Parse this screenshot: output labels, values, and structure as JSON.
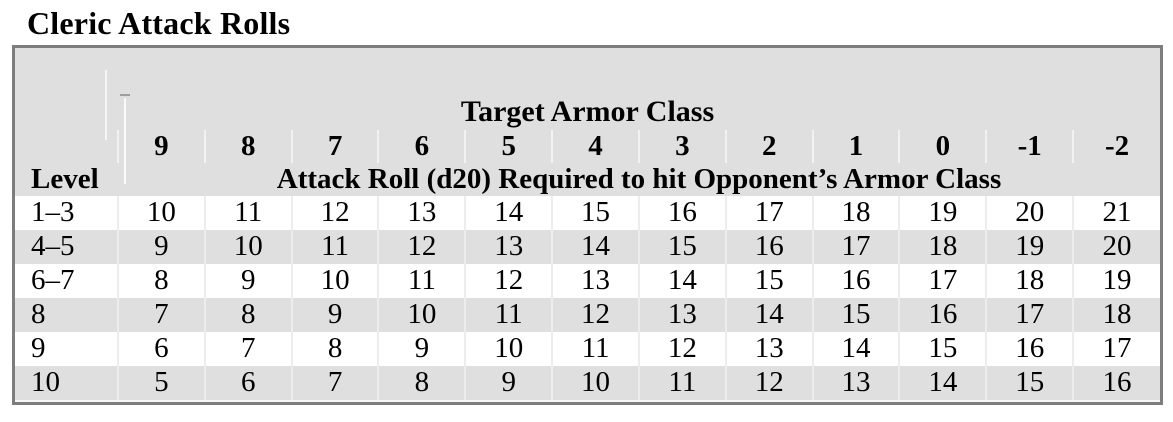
{
  "title": "Cleric Attack Rolls",
  "table": {
    "group_header": "Target Armor Class",
    "level_header": "Level",
    "attack_roll_header": "Attack Roll (d20) Required to hit Opponent’s Armor Class",
    "ac_columns": [
      "9",
      "8",
      "7",
      "6",
      "5",
      "4",
      "3",
      "2",
      "1",
      "0",
      "-1",
      "-2"
    ],
    "rows": [
      {
        "level": "1–3",
        "values": [
          10,
          11,
          12,
          13,
          14,
          15,
          16,
          17,
          18,
          19,
          20,
          21
        ]
      },
      {
        "level": "4–5",
        "values": [
          9,
          10,
          11,
          12,
          13,
          14,
          15,
          16,
          17,
          18,
          19,
          20
        ]
      },
      {
        "level": "6–7",
        "values": [
          8,
          9,
          10,
          11,
          12,
          13,
          14,
          15,
          16,
          17,
          18,
          19
        ]
      },
      {
        "level": "8",
        "values": [
          7,
          8,
          9,
          10,
          11,
          12,
          13,
          14,
          15,
          16,
          17,
          18
        ]
      },
      {
        "level": "9",
        "values": [
          6,
          7,
          8,
          9,
          10,
          11,
          12,
          13,
          14,
          15,
          16,
          17
        ]
      },
      {
        "level": "10",
        "values": [
          5,
          6,
          7,
          8,
          9,
          10,
          11,
          12,
          13,
          14,
          15,
          16
        ]
      }
    ],
    "colors": {
      "table_bg": "#dfdfdf",
      "stripe": "#ffffff",
      "frame_border": "#7d7d7d",
      "text": "#000000"
    }
  }
}
